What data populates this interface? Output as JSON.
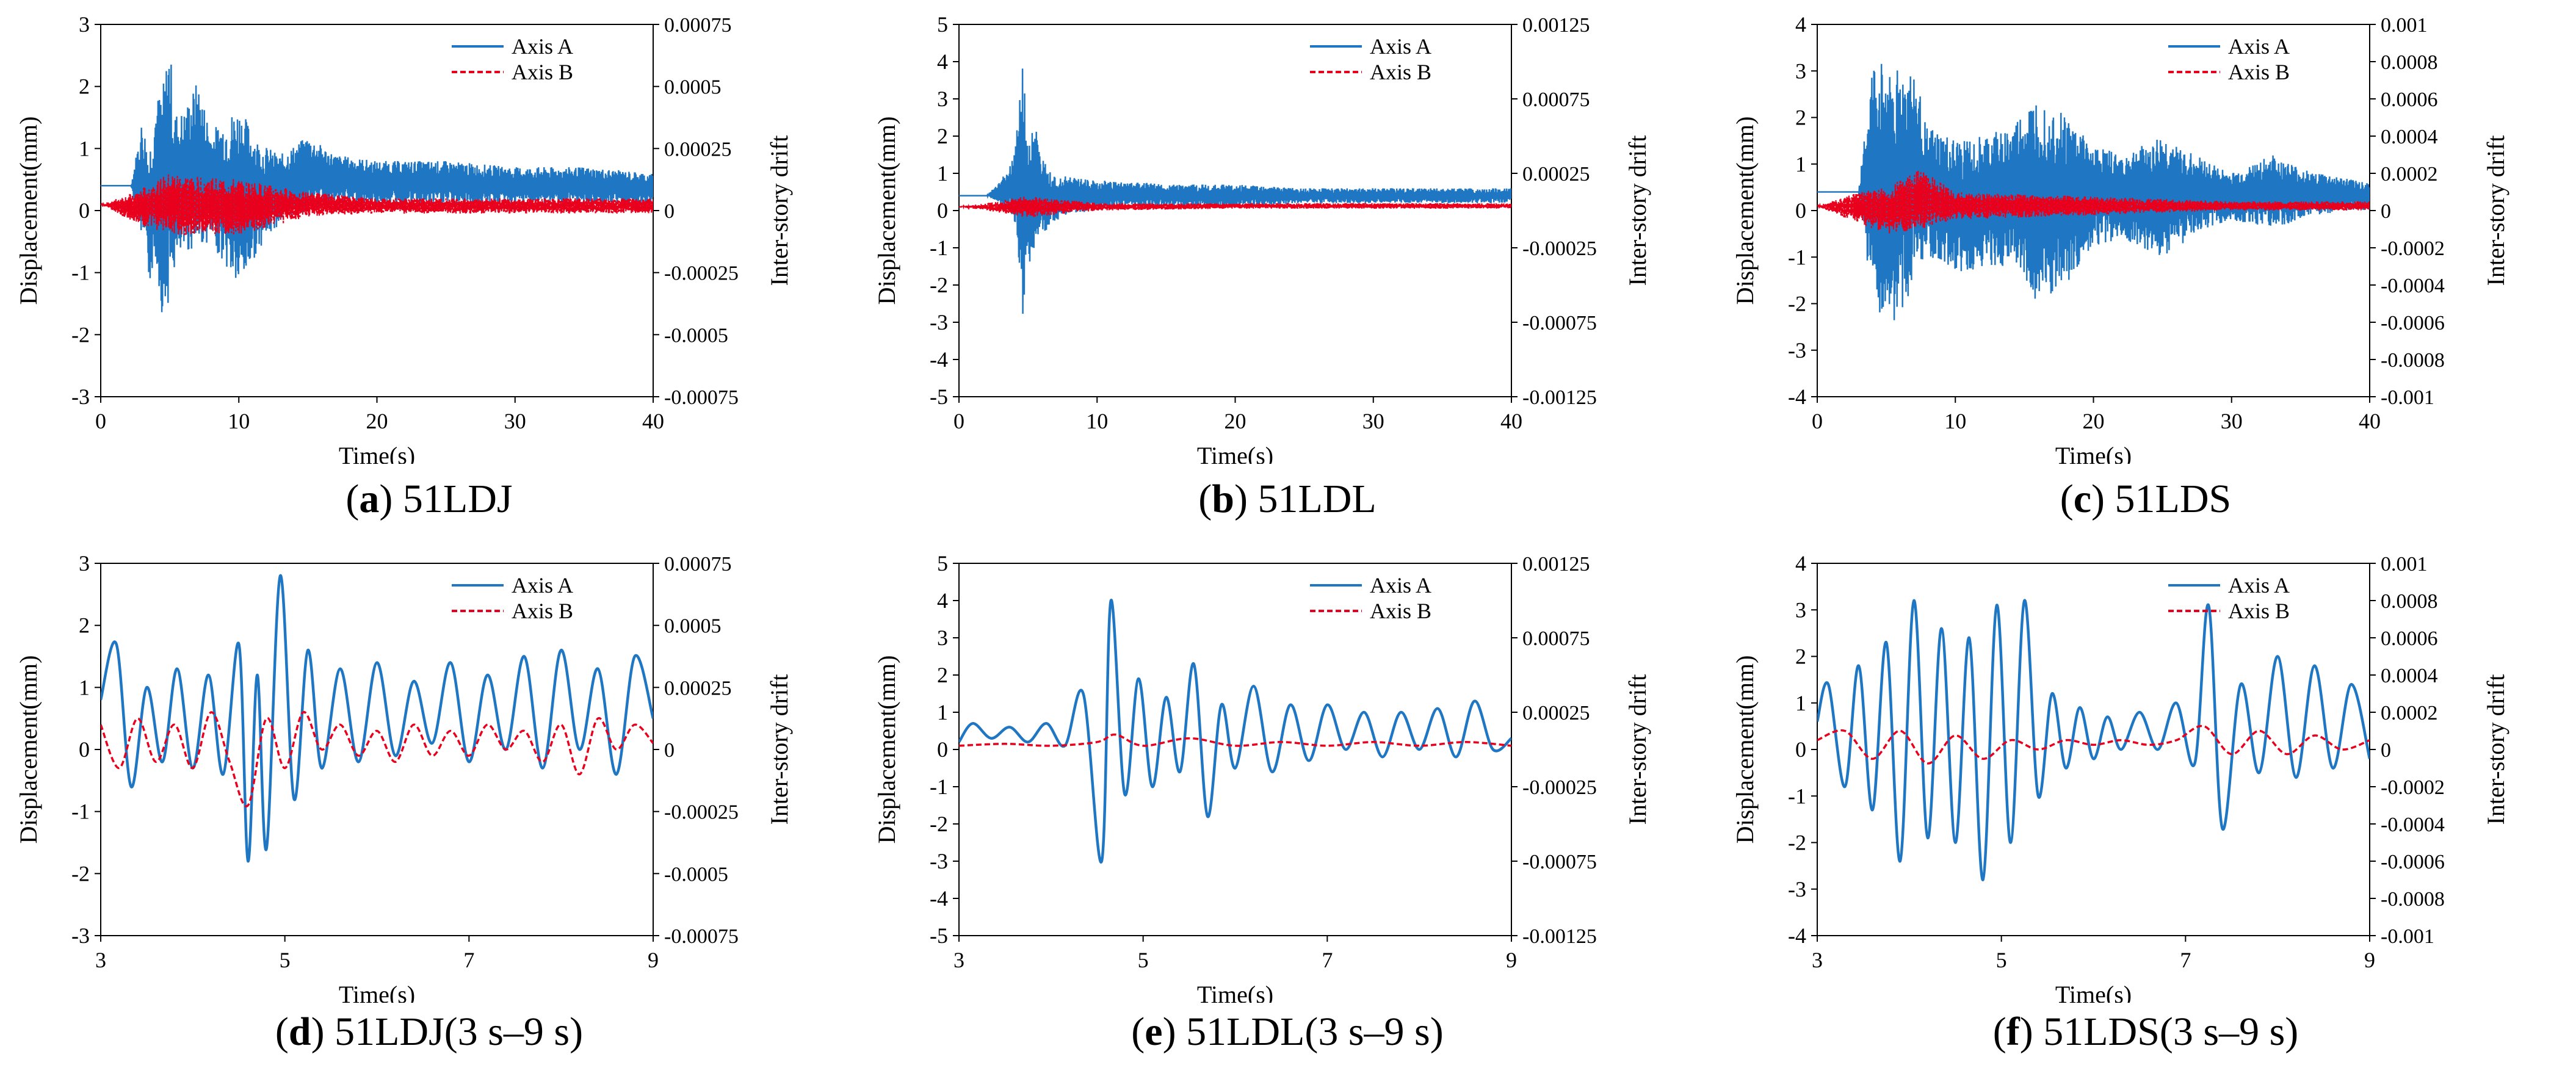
{
  "chart_data": [
    {
      "type": "line",
      "panel_letter": "a",
      "caption_text": "51LDJ",
      "xlabel": "Time(s)",
      "ylabel": "Displacement(mm)",
      "y2label": "Inter-story drift",
      "xlim": [
        0,
        40
      ],
      "ylim": [
        -3,
        3
      ],
      "y2lim": [
        -0.00075,
        0.00075
      ],
      "x_ticks": [
        "0",
        "10",
        "20",
        "30",
        "40"
      ],
      "y_ticks": [
        "3",
        "2",
        "1",
        "0",
        "-1",
        "-2",
        "-3"
      ],
      "y2_ticks": [
        "0.00075",
        "0.0005",
        "0.00025",
        "0",
        "-0.00025",
        "-0.0005",
        "-0.00075"
      ],
      "legend_position": "top-right",
      "grid": false,
      "series": [
        {
          "name": "Axis A",
          "color": "#1f77c4",
          "style": "solid",
          "x": [
            0,
            2.2,
            3,
            3.5,
            4,
            4.5,
            5,
            5.3,
            6,
            7,
            8,
            10,
            11.5,
            13,
            15,
            17,
            20,
            25,
            30,
            35,
            40
          ],
          "y": [
            0.4,
            0.4,
            1.5,
            1.0,
            1.8,
            2.0,
            2.8,
            1.6,
            1.6,
            2.1,
            1.3,
            1.7,
            1.1,
            0.9,
            1.2,
            0.9,
            0.8,
            0.8,
            0.7,
            0.7,
            0.6
          ],
          "y_low": [
            0.4,
            0.4,
            -0.5,
            -1.2,
            -0.8,
            -1.8,
            -1.4,
            -1.0,
            -0.7,
            -0.6,
            -0.5,
            -1.3,
            -0.6,
            -0.2,
            0.0,
            0.1,
            0.1,
            0.1,
            0.1,
            0.1,
            0.1
          ]
        },
        {
          "name": "Axis B",
          "color": "#e8001c",
          "style": "dashed",
          "x": [
            0,
            2.5,
            5,
            10,
            15,
            20,
            30,
            40
          ],
          "y": [
            0.1,
            0.3,
            0.6,
            0.5,
            0.3,
            0.2,
            0.2,
            0.2
          ],
          "y_low": [
            0.1,
            -0.2,
            -0.4,
            -0.4,
            -0.1,
            -0.05,
            -0.05,
            -0.05
          ]
        }
      ]
    },
    {
      "type": "line",
      "panel_letter": "b",
      "caption_text": "51LDL",
      "xlabel": "Time(s)",
      "ylabel": "Displacement(mm)",
      "y2label": "Inter-story drift",
      "xlim": [
        0,
        40
      ],
      "ylim": [
        -5,
        5
      ],
      "y2lim": [
        -0.00125,
        0.00125
      ],
      "x_ticks": [
        "0",
        "10",
        "20",
        "30",
        "40"
      ],
      "y_ticks": [
        "5",
        "4",
        "3",
        "2",
        "1",
        "0",
        "-1",
        "-2",
        "-3",
        "-4",
        "-5"
      ],
      "y2_ticks": [
        "0.00125",
        "0.00075",
        "0.00025",
        "-0.00025",
        "-0.00075",
        "-0.00125"
      ],
      "legend_position": "top-right",
      "grid": false,
      "series": [
        {
          "name": "Axis A",
          "color": "#1f77c4",
          "style": "solid",
          "x": [
            0,
            2,
            3,
            4,
            4.6,
            5,
            5.6,
            6,
            7,
            8,
            10,
            12,
            15,
            20,
            25,
            30,
            35,
            40
          ],
          "y": [
            0.4,
            0.4,
            0.8,
            1.5,
            4.0,
            1.9,
            2.3,
            1.4,
            1.0,
            0.9,
            0.8,
            0.8,
            0.7,
            0.7,
            0.6,
            0.6,
            0.6,
            0.6
          ],
          "y_low": [
            0.4,
            0.4,
            0.2,
            -0.2,
            -3.0,
            -1.5,
            -1.1,
            -0.8,
            -0.3,
            -0.1,
            0.0,
            0.1,
            0.1,
            0.1,
            0.2,
            0.2,
            0.2,
            0.2
          ]
        },
        {
          "name": "Axis B",
          "color": "#e8001c",
          "style": "dashed",
          "x": [
            0,
            2,
            5,
            10,
            20,
            40
          ],
          "y": [
            0.1,
            0.2,
            0.4,
            0.2,
            0.2,
            0.2
          ],
          "y_low": [
            0.1,
            0.0,
            -0.2,
            0.0,
            0.05,
            0.05
          ]
        }
      ]
    },
    {
      "type": "line",
      "panel_letter": "c",
      "caption_text": "51LDS",
      "xlabel": "Time(s)",
      "ylabel": "Displacement(mm)",
      "y2label": "Inter-story drift",
      "xlim": [
        0,
        40
      ],
      "ylim": [
        -4,
        4
      ],
      "y2lim": [
        -0.001,
        0.001
      ],
      "x_ticks": [
        "0",
        "10",
        "20",
        "30",
        "40"
      ],
      "y_ticks": [
        "4",
        "3",
        "2",
        "1",
        "0",
        "-1",
        "-2",
        "-3",
        "-4"
      ],
      "y2_ticks": [
        "0.001",
        "0.0008",
        "0.0006",
        "0.0004",
        "0.0002",
        "0",
        "-0.0002",
        "-0.0004",
        "-0.0006",
        "-0.0008",
        "-0.001"
      ],
      "legend_position": "top-right",
      "grid": false,
      "series": [
        {
          "name": "Axis A",
          "color": "#1f77c4",
          "style": "solid",
          "x": [
            0,
            3,
            4,
            5,
            7,
            8,
            10,
            12,
            14,
            16,
            18,
            20,
            22,
            25,
            28,
            30,
            33,
            35,
            38,
            40
          ],
          "y": [
            0.4,
            0.4,
            3.2,
            3.2,
            3.0,
            1.8,
            1.5,
            1.6,
            1.8,
            2.5,
            2.1,
            1.4,
            1.2,
            1.6,
            1.1,
            0.8,
            1.2,
            0.9,
            0.7,
            0.6
          ],
          "y_low": [
            0.4,
            0.4,
            -2.0,
            -2.8,
            -1.6,
            -1.0,
            -1.4,
            -1.2,
            -1.2,
            -2.0,
            -1.6,
            -0.8,
            -0.6,
            -1.0,
            -0.4,
            -0.2,
            -0.4,
            -0.2,
            0.0,
            0.0
          ]
        },
        {
          "name": "Axis B",
          "color": "#e8001c",
          "style": "dashed",
          "x": [
            0,
            3,
            5,
            7.5,
            10,
            20,
            30,
            40
          ],
          "y": [
            0.1,
            0.4,
            0.5,
            0.9,
            0.4,
            0.3,
            0.2,
            0.2
          ],
          "y_low": [
            0.1,
            -0.3,
            -0.5,
            -0.4,
            -0.2,
            -0.1,
            0.0,
            0.0
          ]
        }
      ]
    },
    {
      "type": "line",
      "panel_letter": "d",
      "caption_text": "51LDJ(3 s–9 s)",
      "xlabel": "Time(s)",
      "ylabel": "Displacement(mm)",
      "y2label": "Inter-story drift",
      "xlim": [
        3,
        9
      ],
      "ylim": [
        -3,
        3
      ],
      "y2lim": [
        -0.00075,
        0.00075
      ],
      "x_ticks": [
        "3",
        "5",
        "7",
        "9"
      ],
      "y_ticks": [
        "3",
        "2",
        "1",
        "0",
        "-1",
        "-2",
        "-3"
      ],
      "y2_ticks": [
        "0.00075",
        "0.0005",
        "0.00025",
        "0",
        "-0.00025",
        "-0.0005",
        "-0.00075"
      ],
      "legend_position": "top-right",
      "grid": false,
      "series": [
        {
          "name": "Axis A",
          "color": "#1f77c4",
          "style": "solid",
          "x": [
            3.0,
            3.17,
            3.33,
            3.5,
            3.67,
            3.83,
            4.0,
            4.17,
            4.33,
            4.5,
            4.6,
            4.7,
            4.8,
            4.95,
            5.1,
            5.25,
            5.4,
            5.6,
            5.8,
            6.0,
            6.2,
            6.4,
            6.6,
            6.8,
            7.0,
            7.2,
            7.4,
            7.6,
            7.8,
            8.0,
            8.2,
            8.4,
            8.6,
            8.8,
            9.0
          ],
          "y": [
            0.8,
            1.7,
            -0.6,
            1.0,
            -0.2,
            1.3,
            -0.3,
            1.2,
            -0.4,
            1.7,
            -1.8,
            1.2,
            -1.6,
            2.8,
            -0.8,
            1.6,
            -0.3,
            1.3,
            -0.2,
            1.4,
            -0.1,
            1.1,
            0.1,
            1.4,
            -0.2,
            1.2,
            0.0,
            1.5,
            -0.3,
            1.6,
            0.0,
            1.3,
            -0.4,
            1.5,
            0.5
          ],
          "y_low": []
        },
        {
          "name": "Axis B",
          "color": "#e8001c",
          "style": "dashed",
          "x": [
            3.0,
            3.2,
            3.4,
            3.6,
            3.8,
            4.0,
            4.2,
            4.4,
            4.6,
            4.8,
            5.0,
            5.2,
            5.4,
            5.6,
            5.8,
            6.0,
            6.2,
            6.4,
            6.6,
            6.8,
            7.0,
            7.2,
            7.4,
            7.6,
            7.8,
            8.0,
            8.2,
            8.4,
            8.6,
            8.8,
            9.0
          ],
          "y": [
            0.4,
            -0.3,
            0.5,
            -0.2,
            0.4,
            -0.3,
            0.6,
            -0.2,
            -0.9,
            0.5,
            -0.3,
            0.6,
            0.0,
            0.4,
            -0.1,
            0.3,
            -0.2,
            0.4,
            -0.1,
            0.3,
            -0.1,
            0.4,
            0.0,
            0.3,
            -0.2,
            0.4,
            -0.4,
            0.5,
            0.0,
            0.4,
            0.1
          ],
          "y_low": []
        }
      ]
    },
    {
      "type": "line",
      "panel_letter": "e",
      "caption_text": "51LDL(3 s–9 s)",
      "xlabel": "Time(s)",
      "ylabel": "Displacement(mm)",
      "y2label": "Inter-story drift",
      "xlim": [
        3,
        9
      ],
      "ylim": [
        -5,
        5
      ],
      "y2lim": [
        -0.00125,
        0.00125
      ],
      "x_ticks": [
        "3",
        "5",
        "7",
        "9"
      ],
      "y_ticks": [
        "5",
        "4",
        "3",
        "2",
        "1",
        "0",
        "-1",
        "-2",
        "-3",
        "-4",
        "-5"
      ],
      "y2_ticks": [
        "0.00125",
        "0.00075",
        "0.00025",
        "-0.00025",
        "-0.00075",
        "-0.00125"
      ],
      "legend_position": "top-right",
      "grid": false,
      "series": [
        {
          "name": "Axis A",
          "color": "#1f77c4",
          "style": "solid",
          "x": [
            3.0,
            3.15,
            3.35,
            3.55,
            3.75,
            3.95,
            4.15,
            4.35,
            4.55,
            4.65,
            4.8,
            4.95,
            5.1,
            5.25,
            5.4,
            5.55,
            5.7,
            5.85,
            6.0,
            6.2,
            6.4,
            6.6,
            6.8,
            7.0,
            7.2,
            7.4,
            7.6,
            7.8,
            8.0,
            8.2,
            8.4,
            8.6,
            8.8,
            9.0
          ],
          "y": [
            0.2,
            0.7,
            0.3,
            0.6,
            0.2,
            0.7,
            0.1,
            1.5,
            -3.0,
            4.0,
            -1.2,
            1.9,
            -1.0,
            1.4,
            -0.6,
            2.3,
            -1.8,
            1.2,
            -0.5,
            1.7,
            -0.6,
            1.2,
            -0.3,
            1.2,
            0.0,
            1.0,
            -0.2,
            1.0,
            0.0,
            1.1,
            -0.2,
            1.3,
            0.0,
            0.3
          ],
          "y_low": []
        },
        {
          "name": "Axis B",
          "color": "#e8001c",
          "style": "dashed",
          "x": [
            3.0,
            3.5,
            4.0,
            4.5,
            4.7,
            5.0,
            5.5,
            6.0,
            6.5,
            7.0,
            7.5,
            8.0,
            8.5,
            9.0
          ],
          "y": [
            0.1,
            0.15,
            0.1,
            0.2,
            0.4,
            0.1,
            0.3,
            0.1,
            0.2,
            0.1,
            0.2,
            0.1,
            0.2,
            0.1
          ],
          "y_low": []
        }
      ]
    },
    {
      "type": "line",
      "panel_letter": "f",
      "caption_text": "51LDS(3 s–9 s)",
      "xlabel": "Time(s)",
      "ylabel": "Displacement(mm)",
      "y2label": "Inter-story drift",
      "xlim": [
        3,
        9
      ],
      "ylim": [
        -4,
        4
      ],
      "y2lim": [
        -0.001,
        0.001
      ],
      "x_ticks": [
        "3",
        "5",
        "7",
        "9"
      ],
      "y_ticks": [
        "4",
        "3",
        "2",
        "1",
        "0",
        "-1",
        "-2",
        "-3",
        "-4"
      ],
      "y2_ticks": [
        "0.001",
        "0.0008",
        "0.0006",
        "0.0004",
        "0.0002",
        "0",
        "-0.0002",
        "-0.0004",
        "-0.0006",
        "-0.0008",
        "-0.001"
      ],
      "legend_position": "top-right",
      "grid": false,
      "series": [
        {
          "name": "Axis A",
          "color": "#1f77c4",
          "style": "solid",
          "x": [
            3.0,
            3.12,
            3.3,
            3.45,
            3.6,
            3.75,
            3.9,
            4.05,
            4.2,
            4.35,
            4.5,
            4.65,
            4.8,
            4.95,
            5.1,
            5.25,
            5.4,
            5.55,
            5.7,
            5.85,
            6.0,
            6.15,
            6.3,
            6.5,
            6.7,
            6.9,
            7.1,
            7.25,
            7.4,
            7.6,
            7.8,
            8.0,
            8.2,
            8.4,
            8.6,
            8.8,
            9.0
          ],
          "y": [
            0.6,
            1.4,
            -0.8,
            1.8,
            -1.3,
            2.3,
            -2.4,
            3.2,
            -1.9,
            2.6,
            -2.0,
            2.4,
            -2.8,
            3.1,
            -2.0,
            3.2,
            -1.0,
            1.2,
            -0.4,
            0.9,
            -0.2,
            0.7,
            0.0,
            0.8,
            0.0,
            1.0,
            -0.3,
            3.1,
            -1.7,
            1.4,
            -0.5,
            2.0,
            -0.6,
            1.8,
            -0.4,
            1.4,
            -0.2
          ],
          "y_low": []
        },
        {
          "name": "Axis B",
          "color": "#e8001c",
          "style": "dashed",
          "x": [
            3.0,
            3.3,
            3.6,
            3.9,
            4.2,
            4.5,
            4.8,
            5.1,
            5.4,
            5.7,
            6.0,
            6.3,
            6.6,
            6.9,
            7.2,
            7.5,
            7.8,
            8.1,
            8.4,
            8.7,
            9.0
          ],
          "y": [
            0.2,
            0.4,
            -0.2,
            0.4,
            -0.3,
            0.3,
            -0.2,
            0.2,
            0.0,
            0.2,
            0.1,
            0.2,
            0.1,
            0.2,
            0.5,
            -0.1,
            0.4,
            -0.1,
            0.3,
            0.0,
            0.2
          ],
          "y_low": []
        }
      ]
    }
  ]
}
